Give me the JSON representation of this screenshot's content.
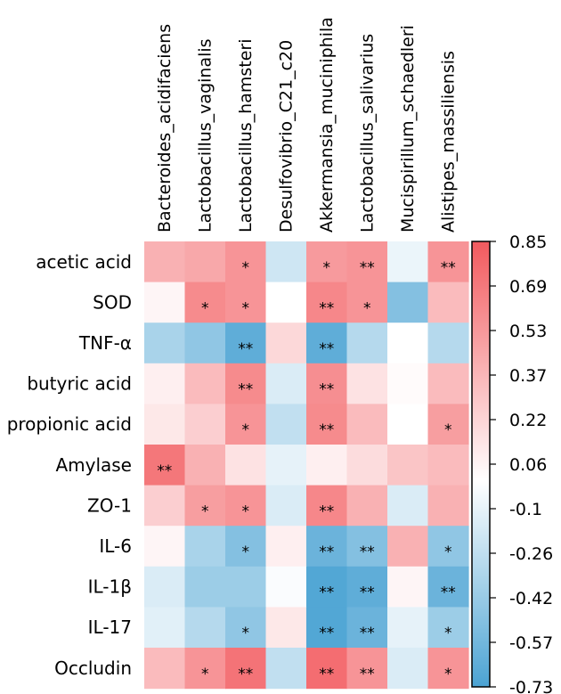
{
  "chart_data": {
    "type": "heatmap",
    "title": "",
    "columns": [
      "Bacteroides_acidifaciens",
      "Lactobacillus_vaginalis",
      "Lactobacillus_hamsteri",
      "Desulfovibrio_C21_c20",
      "Akkermansia_muciniphila",
      "Lactobacillus_salivarius",
      "Mucispirillum_schaedleri",
      "Alistipes_massiliensis"
    ],
    "rows": [
      "acetic acid",
      "SOD",
      "TNF-α",
      "butyric acid",
      "propionic acid",
      "Amylase",
      "ZO-1",
      "IL-6",
      "IL-1β",
      "IL-17",
      "Occludin"
    ],
    "values": [
      [
        0.4,
        0.45,
        0.55,
        -0.2,
        0.52,
        0.55,
        -0.08,
        0.55
      ],
      [
        0.05,
        0.6,
        0.55,
        0.0,
        0.62,
        0.55,
        -0.5,
        0.35
      ],
      [
        -0.35,
        -0.45,
        -0.65,
        0.2,
        -0.65,
        -0.3,
        0.0,
        -0.3
      ],
      [
        0.08,
        0.35,
        0.6,
        -0.15,
        0.58,
        0.15,
        0.02,
        0.35
      ],
      [
        0.12,
        0.25,
        0.55,
        -0.25,
        0.6,
        0.35,
        0.0,
        0.5
      ],
      [
        0.7,
        0.4,
        0.15,
        -0.1,
        0.08,
        0.18,
        0.3,
        0.35
      ],
      [
        0.25,
        0.5,
        0.55,
        -0.15,
        0.62,
        0.4,
        -0.15,
        0.4
      ],
      [
        0.05,
        -0.35,
        -0.5,
        0.08,
        -0.6,
        -0.5,
        0.4,
        -0.45
      ],
      [
        -0.15,
        -0.4,
        -0.4,
        -0.02,
        -0.7,
        -0.65,
        0.05,
        -0.6
      ],
      [
        -0.12,
        -0.3,
        -0.45,
        0.12,
        -0.7,
        -0.6,
        -0.1,
        -0.4
      ],
      [
        0.35,
        0.55,
        0.72,
        -0.25,
        0.75,
        0.55,
        -0.15,
        0.55
      ]
    ],
    "significance": [
      [
        "",
        "",
        "*",
        "",
        "*",
        "**",
        "",
        "**"
      ],
      [
        "",
        "*",
        "*",
        "",
        "**",
        "*",
        "",
        ""
      ],
      [
        "",
        "",
        "**",
        "",
        "**",
        "",
        "",
        ""
      ],
      [
        "",
        "",
        "**",
        "",
        "**",
        "",
        "",
        ""
      ],
      [
        "",
        "",
        "*",
        "",
        "**",
        "",
        "",
        "*"
      ],
      [
        "**",
        "",
        "",
        "",
        "",
        "",
        "",
        ""
      ],
      [
        "",
        "*",
        "*",
        "",
        "**",
        "",
        "",
        ""
      ],
      [
        "",
        "",
        "*",
        "",
        "**",
        "**",
        "",
        "*"
      ],
      [
        "",
        "",
        "",
        "",
        "**",
        "**",
        "",
        "**"
      ],
      [
        "",
        "",
        "*",
        "",
        "**",
        "**",
        "",
        "*"
      ],
      [
        "",
        "*",
        "**",
        "",
        "**",
        "**",
        "",
        "*"
      ]
    ],
    "colorbar": {
      "min": -0.73,
      "max": 0.85,
      "ticks": [
        "0.85",
        "0.69",
        "0.53",
        "0.37",
        "0.22",
        "0.06",
        "-0.1",
        "-0.26",
        "-0.42",
        "-0.57",
        "-0.73"
      ],
      "low_color": "#4ba3d3",
      "mid_color": "#ffffff",
      "high_color": "#f25a5e"
    }
  }
}
